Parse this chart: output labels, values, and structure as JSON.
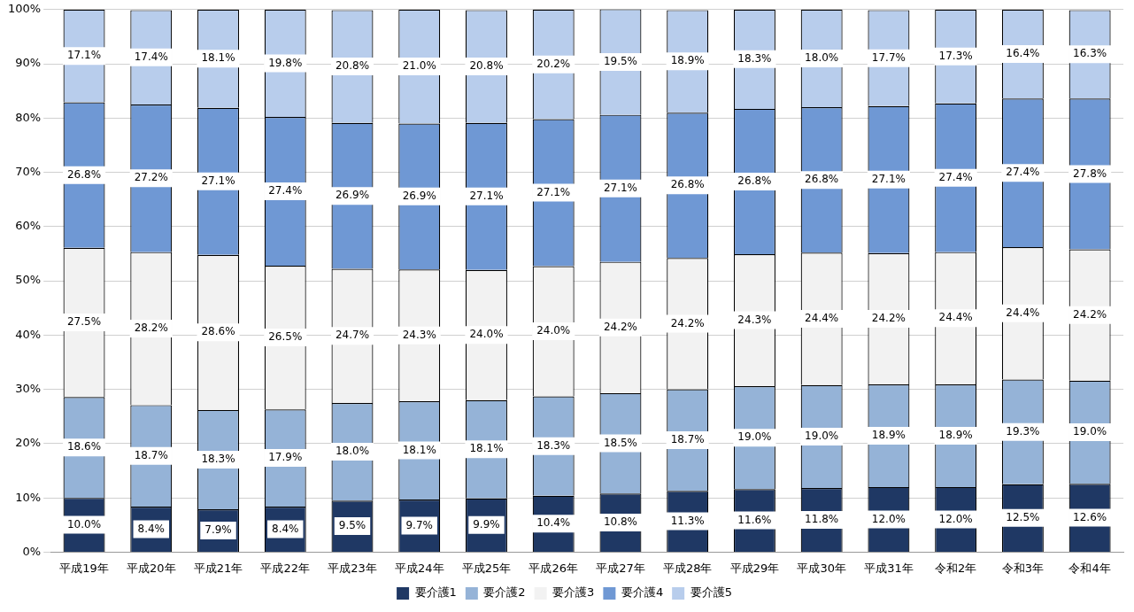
{
  "chart_data": {
    "type": "bar",
    "stacked": true,
    "categories": [
      "平成19年",
      "平成20年",
      "平成21年",
      "平成22年",
      "平成23年",
      "平成24年",
      "平成25年",
      "平成26年",
      "平成27年",
      "平成28年",
      "平成29年",
      "平成30年",
      "平成31年",
      "令和2年",
      "令和3年",
      "令和4年"
    ],
    "series": [
      {
        "name": "要介護1",
        "color": "#1f3864",
        "values": [
          10.0,
          8.4,
          7.9,
          8.4,
          9.5,
          9.7,
          9.9,
          10.4,
          10.8,
          11.3,
          11.6,
          11.8,
          12.0,
          12.0,
          12.5,
          12.6
        ],
        "value_labels": [
          "10.0%",
          "8.4%",
          "7.9%",
          "8.4%",
          "9.5%",
          "9.7%",
          "9.9%",
          "10.4%",
          "10.8%",
          "11.3%",
          "11.6%",
          "11.8%",
          "12.0%",
          "12.0%",
          "12.5%",
          "12.6%"
        ]
      },
      {
        "name": "要介護2",
        "color": "#95b3d7",
        "values": [
          18.6,
          18.7,
          18.3,
          17.9,
          18.0,
          18.1,
          18.1,
          18.3,
          18.5,
          18.7,
          19.0,
          19.0,
          18.9,
          18.9,
          19.3,
          19.0
        ],
        "value_labels": [
          "18.6%",
          "18.7%",
          "18.3%",
          "17.9%",
          "18.0%",
          "18.1%",
          "18.1%",
          "18.3%",
          "18.5%",
          "18.7%",
          "19.0%",
          "19.0%",
          "18.9%",
          "18.9%",
          "19.3%",
          "19.0%"
        ]
      },
      {
        "name": "要介護3",
        "color": "#f2f2f2",
        "values": [
          27.5,
          28.2,
          28.6,
          26.5,
          24.7,
          24.3,
          24.0,
          24.0,
          24.2,
          24.2,
          24.3,
          24.4,
          24.2,
          24.4,
          24.4,
          24.2
        ],
        "value_labels": [
          "27.5%",
          "28.2%",
          "28.6%",
          "26.5%",
          "24.7%",
          "24.3%",
          "24.0%",
          "24.0%",
          "24.2%",
          "24.2%",
          "24.3%",
          "24.4%",
          "24.2%",
          "24.4%",
          "24.4%",
          "24.2%"
        ]
      },
      {
        "name": "要介護4",
        "color": "#6f98d4",
        "values": [
          26.8,
          27.2,
          27.1,
          27.4,
          26.9,
          26.9,
          27.1,
          27.1,
          27.1,
          26.8,
          26.8,
          26.8,
          27.1,
          27.4,
          27.4,
          27.8
        ],
        "value_labels": [
          "26.8%",
          "27.2%",
          "27.1%",
          "27.4%",
          "26.9%",
          "26.9%",
          "27.1%",
          "27.1%",
          "27.1%",
          "26.8%",
          "26.8%",
          "26.8%",
          "27.1%",
          "27.4%",
          "27.4%",
          "27.8%"
        ]
      },
      {
        "name": "要介護5",
        "color": "#b8cdec",
        "values": [
          17.1,
          17.4,
          18.1,
          19.8,
          20.8,
          21.0,
          20.8,
          20.2,
          19.5,
          18.9,
          18.3,
          18.0,
          17.7,
          17.3,
          16.4,
          16.3
        ],
        "value_labels": [
          "17.1%",
          "17.4%",
          "18.1%",
          "19.8%",
          "20.8%",
          "21.0%",
          "20.8%",
          "20.2%",
          "19.5%",
          "18.9%",
          "18.3%",
          "18.0%",
          "17.7%",
          "17.3%",
          "16.4%",
          "16.3%"
        ]
      }
    ],
    "ylim": [
      0,
      100
    ],
    "yticks": [
      {
        "value": 0,
        "label": "0%"
      },
      {
        "value": 10,
        "label": "10%"
      },
      {
        "value": 20,
        "label": "20%"
      },
      {
        "value": 30,
        "label": "30%"
      },
      {
        "value": 40,
        "label": "40%"
      },
      {
        "value": 50,
        "label": "50%"
      },
      {
        "value": 60,
        "label": "60%"
      },
      {
        "value": 70,
        "label": "70%"
      },
      {
        "value": 80,
        "label": "80%"
      },
      {
        "value": 90,
        "label": "90%"
      },
      {
        "value": 100,
        "label": "100%"
      }
    ],
    "grid": "y",
    "legend": "bottom"
  }
}
